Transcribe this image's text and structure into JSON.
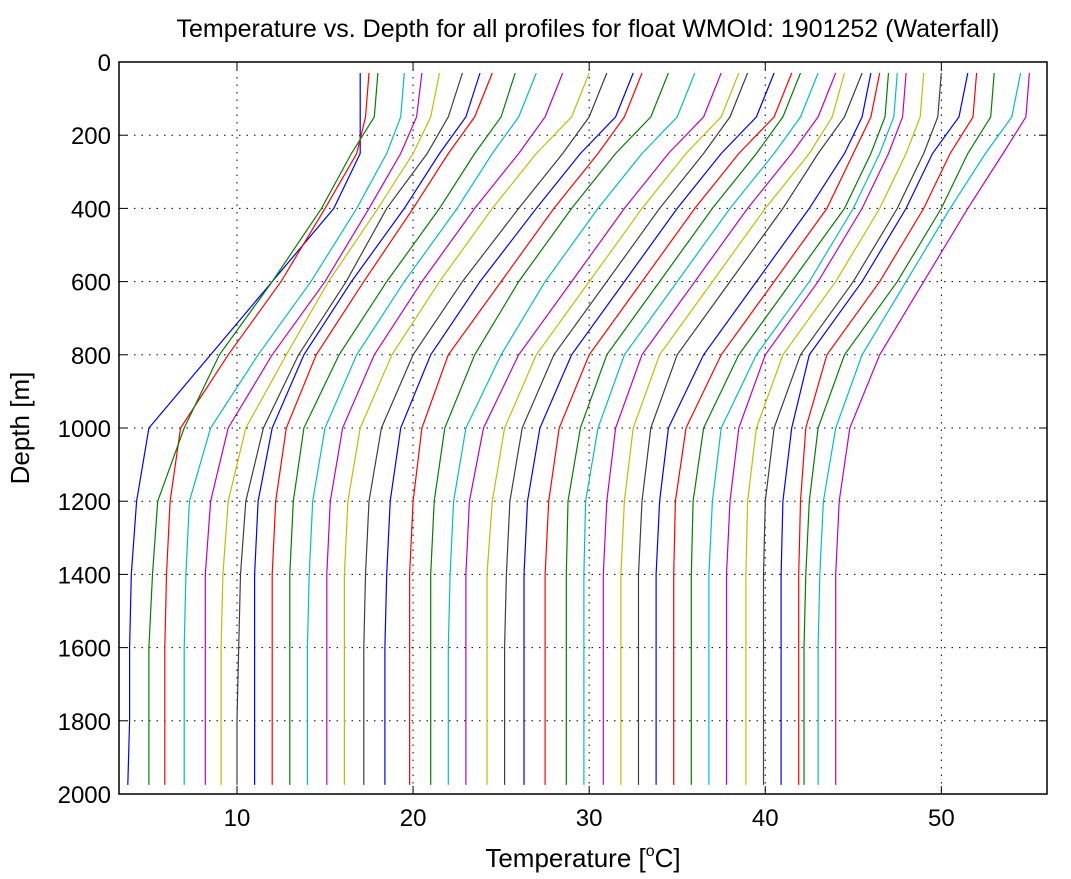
{
  "chart_data": {
    "type": "line",
    "title": "Temperature vs. Depth for all profiles for float WMOId: 1901252 (Waterfall)",
    "xlabel_main": "Temperature [",
    "xlabel_sup": "o",
    "xlabel_end": "C]",
    "ylabel": "Depth [m]",
    "xlim": [
      3.3,
      56
    ],
    "ylim": [
      0,
      2000
    ],
    "y_reversed": true,
    "grid": true,
    "x_ticks": [
      10,
      20,
      30,
      40,
      50
    ],
    "x_tick_labels": [
      "10",
      "20",
      "30",
      "40",
      "50"
    ],
    "y_ticks": [
      0,
      200,
      400,
      600,
      800,
      1000,
      1200,
      1400,
      1600,
      1800,
      2000
    ],
    "y_tick_labels": [
      "0",
      "200",
      "400",
      "600",
      "800",
      "1000",
      "1200",
      "1400",
      "1600",
      "1800",
      "2000"
    ],
    "series_colors": [
      "#0000ff",
      "#ff0000",
      "#008000",
      "#00bfbf",
      "#bf00bf",
      "#bfbf00",
      "#3f3f3f"
    ],
    "depths": [
      30,
      150,
      250,
      400,
      600,
      800,
      1000,
      1200,
      1400,
      1600,
      1800,
      1975
    ],
    "series": [
      {
        "values": [
          17.0,
          17.0,
          17.0,
          15.5,
          12.0,
          8.5,
          5.0,
          4.3,
          4.0,
          3.9,
          3.9,
          3.8
        ]
      },
      {
        "values": [
          17.5,
          17.3,
          16.8,
          15.0,
          12.5,
          9.5,
          6.8,
          6.2,
          6.0,
          5.9,
          5.9,
          5.9
        ]
      },
      {
        "values": [
          18.0,
          17.8,
          16.5,
          14.8,
          12.0,
          9.0,
          7.0,
          5.5,
          5.2,
          5.0,
          5.0,
          5.0
        ]
      },
      {
        "values": [
          19.5,
          19.3,
          18.5,
          16.8,
          14.2,
          11.2,
          8.5,
          7.3,
          7.1,
          7.0,
          7.0,
          7.0
        ]
      },
      {
        "values": [
          20.5,
          20.2,
          19.3,
          17.5,
          15.0,
          12.0,
          9.5,
          8.5,
          8.2,
          8.2,
          8.2,
          8.2
        ]
      },
      {
        "values": [
          21.5,
          21.0,
          20.0,
          18.0,
          15.2,
          12.8,
          10.5,
          9.5,
          9.2,
          9.1,
          9.1,
          9.1
        ]
      },
      {
        "values": [
          22.8,
          22.0,
          20.8,
          18.5,
          16.2,
          13.5,
          11.5,
          10.5,
          10.2,
          10.1,
          10.0,
          10.0
        ]
      },
      {
        "values": [
          23.8,
          23.0,
          21.5,
          19.5,
          16.5,
          13.8,
          12.0,
          11.2,
          11.0,
          11.0,
          11.0,
          11.0
        ]
      },
      {
        "values": [
          24.5,
          23.5,
          22.0,
          20.0,
          17.2,
          14.5,
          12.8,
          12.2,
          12.0,
          12.0,
          12.0,
          12.0
        ]
      },
      {
        "values": [
          25.8,
          25.0,
          23.5,
          21.5,
          18.5,
          15.8,
          13.8,
          13.2,
          13.0,
          13.0,
          13.0,
          13.0
        ]
      },
      {
        "values": [
          27.0,
          26.0,
          24.5,
          22.5,
          19.5,
          16.8,
          15.0,
          14.3,
          14.1,
          14.0,
          14.0,
          14.0
        ]
      },
      {
        "values": [
          28.5,
          27.5,
          26.0,
          23.5,
          20.5,
          17.8,
          16.0,
          15.3,
          15.1,
          15.1,
          15.1,
          15.1
        ]
      },
      {
        "values": [
          30.0,
          29.0,
          27.0,
          24.5,
          21.5,
          18.8,
          17.0,
          16.3,
          16.1,
          16.1,
          16.1,
          16.1
        ]
      },
      {
        "values": [
          31.0,
          30.0,
          28.5,
          26.0,
          22.8,
          20.0,
          18.2,
          17.5,
          17.3,
          17.2,
          17.2,
          17.2
        ]
      },
      {
        "values": [
          32.5,
          31.5,
          29.5,
          27.0,
          23.8,
          21.0,
          19.3,
          18.7,
          18.5,
          18.4,
          18.4,
          18.4
        ]
      },
      {
        "values": [
          33.0,
          32.0,
          30.5,
          28.0,
          25.0,
          22.0,
          20.5,
          20.0,
          19.8,
          19.8,
          19.8,
          19.8
        ]
      },
      {
        "values": [
          34.5,
          33.5,
          31.5,
          29.0,
          26.0,
          23.5,
          21.8,
          21.2,
          21.0,
          21.0,
          21.0,
          21.0
        ]
      },
      {
        "values": [
          36.0,
          35.0,
          33.0,
          30.5,
          27.5,
          25.0,
          23.0,
          22.3,
          22.1,
          22.0,
          22.0,
          22.0
        ]
      },
      {
        "values": [
          37.5,
          36.5,
          34.5,
          32.0,
          29.0,
          26.0,
          24.0,
          23.2,
          23.0,
          23.0,
          23.0,
          23.0
        ]
      },
      {
        "values": [
          38.5,
          37.5,
          35.5,
          33.0,
          30.0,
          27.0,
          25.2,
          24.5,
          24.2,
          24.2,
          24.2,
          24.2
        ]
      },
      {
        "values": [
          39.0,
          38.0,
          36.5,
          34.0,
          31.0,
          28.0,
          26.2,
          25.5,
          25.3,
          25.2,
          25.2,
          25.2
        ]
      },
      {
        "values": [
          40.5,
          39.5,
          37.5,
          35.0,
          32.0,
          29.0,
          27.2,
          26.5,
          26.3,
          26.3,
          26.3,
          26.3
        ]
      },
      {
        "values": [
          41.5,
          40.5,
          38.5,
          36.0,
          33.0,
          30.0,
          28.3,
          27.7,
          27.5,
          27.5,
          27.5,
          27.5
        ]
      },
      {
        "values": [
          42.0,
          41.0,
          39.5,
          37.0,
          34.0,
          31.0,
          29.5,
          28.8,
          28.7,
          28.7,
          28.7,
          28.7
        ]
      },
      {
        "values": [
          43.0,
          42.0,
          40.5,
          38.0,
          35.0,
          32.0,
          30.5,
          29.8,
          29.7,
          29.7,
          29.7,
          29.7
        ]
      },
      {
        "values": [
          44.0,
          43.0,
          41.5,
          39.0,
          36.0,
          33.0,
          31.5,
          31.0,
          30.8,
          30.8,
          30.8,
          30.8
        ]
      },
      {
        "values": [
          44.5,
          43.8,
          42.5,
          40.0,
          37.0,
          34.0,
          32.5,
          32.0,
          31.8,
          31.8,
          31.8,
          31.8
        ]
      },
      {
        "values": [
          45.5,
          44.5,
          43.0,
          41.0,
          38.0,
          35.0,
          33.5,
          33.0,
          32.8,
          32.8,
          32.8,
          32.8
        ]
      },
      {
        "values": [
          46.0,
          45.5,
          44.5,
          42.5,
          39.5,
          36.5,
          34.5,
          34.0,
          33.8,
          33.8,
          33.8,
          33.8
        ]
      },
      {
        "values": [
          46.5,
          46.0,
          45.0,
          43.5,
          40.5,
          37.5,
          35.5,
          34.9,
          34.8,
          34.8,
          34.8,
          34.8
        ]
      },
      {
        "values": [
          47.0,
          46.8,
          46.0,
          44.5,
          41.5,
          38.5,
          36.5,
          35.9,
          35.8,
          35.8,
          35.8,
          35.8
        ]
      },
      {
        "values": [
          47.5,
          47.3,
          46.5,
          45.0,
          42.5,
          39.5,
          37.5,
          37.0,
          36.8,
          36.8,
          36.8,
          36.8
        ]
      },
      {
        "values": [
          48.0,
          47.8,
          47.0,
          45.5,
          43.0,
          40.0,
          38.5,
          38.0,
          37.8,
          37.8,
          37.8,
          37.8
        ]
      },
      {
        "values": [
          49.0,
          48.8,
          48.0,
          46.5,
          44.0,
          41.0,
          39.5,
          39.0,
          38.9,
          38.9,
          38.9,
          38.9
        ]
      },
      {
        "values": [
          50.0,
          49.8,
          49.0,
          47.5,
          45.0,
          42.0,
          40.5,
          40.0,
          39.9,
          39.9,
          39.9,
          39.9
        ]
      },
      {
        "values": [
          51.5,
          51.0,
          49.5,
          48.0,
          45.5,
          42.5,
          41.5,
          41.0,
          40.9,
          40.9,
          40.9,
          40.9
        ]
      },
      {
        "values": [
          52.0,
          51.8,
          50.5,
          49.0,
          46.5,
          43.5,
          42.3,
          42.0,
          41.9,
          41.9,
          41.9,
          41.9
        ]
      },
      {
        "values": [
          53.0,
          52.8,
          51.5,
          50.0,
          47.5,
          44.5,
          43.0,
          42.5,
          42.3,
          42.2,
          42.2,
          42.2
        ]
      },
      {
        "values": [
          54.5,
          54.0,
          52.5,
          50.5,
          48.0,
          45.5,
          44.0,
          43.3,
          43.1,
          43.0,
          43.0,
          43.0
        ]
      },
      {
        "values": [
          55.0,
          54.8,
          53.5,
          51.5,
          49.0,
          46.5,
          44.8,
          44.2,
          44.0,
          44.0,
          44.0,
          44.0
        ]
      }
    ]
  }
}
